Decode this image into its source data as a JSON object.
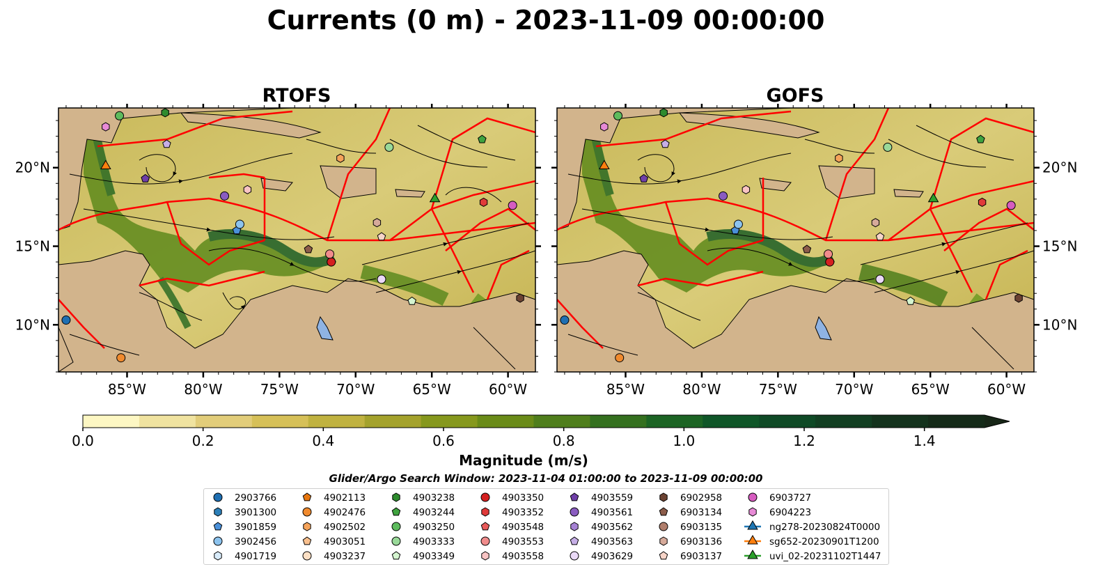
{
  "figure": {
    "title": "Currents (0 m) - 2023-11-09 00:00:00",
    "panels": [
      {
        "title": "RTOFS"
      },
      {
        "title": "GOFS"
      }
    ],
    "colorbar": {
      "label": "Magnitude (m/s)",
      "ticks": [
        "0.0",
        "0.2",
        "0.4",
        "0.6",
        "0.8",
        "1.0",
        "1.2",
        "1.4"
      ],
      "colors": [
        "#fdf7c3",
        "#f0e3a0",
        "#e2cd7a",
        "#d6c058",
        "#c0b240",
        "#a4a22c",
        "#86981d",
        "#6a8b18",
        "#4f7e1c",
        "#34701f",
        "#1c6424",
        "#0f5628",
        "#0f4a26",
        "#123f22",
        "#14331d",
        "#152b19",
        "#172617"
      ]
    },
    "search_window": "Glider/Argo Search Window: 2023-11-04 01:00:00 to 2023-11-09 00:00:00"
  },
  "chart_data": [
    {
      "type": "map",
      "title": "RTOFS",
      "xlim": [
        -89.5,
        -58.2
      ],
      "ylim": [
        7.0,
        23.8
      ],
      "xticks": [
        {
          "value": -85,
          "label": "85°W"
        },
        {
          "value": -80,
          "label": "80°W"
        },
        {
          "value": -75,
          "label": "75°W"
        },
        {
          "value": -70,
          "label": "70°W"
        },
        {
          "value": -65,
          "label": "65°W"
        },
        {
          "value": -60,
          "label": "60°W"
        }
      ],
      "yticks": [
        {
          "value": 20,
          "label": "20°N"
        },
        {
          "value": 15,
          "label": "15°N"
        },
        {
          "value": 10,
          "label": "10°N"
        }
      ]
    },
    {
      "type": "map",
      "title": "GOFS",
      "xlim": [
        -89.5,
        -58.2
      ],
      "ylim": [
        7.0,
        23.8
      ],
      "xticks": [
        {
          "value": -85,
          "label": "85°W"
        },
        {
          "value": -80,
          "label": "80°W"
        },
        {
          "value": -75,
          "label": "75°W"
        },
        {
          "value": -70,
          "label": "70°W"
        },
        {
          "value": -65,
          "label": "65°W"
        },
        {
          "value": -60,
          "label": "60°W"
        }
      ],
      "yticks": [
        {
          "value": 20,
          "label": "20°N"
        },
        {
          "value": 15,
          "label": "15°N"
        },
        {
          "value": 10,
          "label": "10°N"
        }
      ]
    }
  ],
  "platforms": [
    {
      "id": "2903766",
      "marker": "circle",
      "color": "#1f6fb2",
      "lon": -89.0,
      "lat": 10.3
    },
    {
      "id": "3901300",
      "marker": "hexagon",
      "color": "#2c7fb8"
    },
    {
      "id": "3901859",
      "marker": "pentagon",
      "color": "#4a90d9",
      "lon": -77.8,
      "lat": 16.0
    },
    {
      "id": "3902456",
      "marker": "circle",
      "color": "#8cc3ee",
      "lon": -77.6,
      "lat": 16.4
    },
    {
      "id": "4901719",
      "marker": "hexagon",
      "color": "#d8ebfa"
    },
    {
      "id": "4902113",
      "marker": "pentagon",
      "color": "#e8770f"
    },
    {
      "id": "4902476",
      "marker": "circle",
      "color": "#f08a2e",
      "lon": -85.4,
      "lat": 7.9
    },
    {
      "id": "4902502",
      "marker": "hexagon",
      "color": "#f5a35a",
      "lon": -71.0,
      "lat": 20.6
    },
    {
      "id": "4903051",
      "marker": "pentagon",
      "color": "#f9c08e"
    },
    {
      "id": "4903237",
      "marker": "circle",
      "color": "#fde0c5"
    },
    {
      "id": "4903238",
      "marker": "hexagon",
      "color": "#2e8b2e",
      "lon": -82.5,
      "lat": 23.5
    },
    {
      "id": "4903244",
      "marker": "pentagon",
      "color": "#3fa33f",
      "lon": -61.7,
      "lat": 21.8
    },
    {
      "id": "4903250",
      "marker": "circle",
      "color": "#5dbb5d",
      "lon": -85.5,
      "lat": 23.3
    },
    {
      "id": "4903333",
      "marker": "circle",
      "color": "#99d999",
      "lon": -67.8,
      "lat": 21.3
    },
    {
      "id": "4903349",
      "marker": "pentagon",
      "color": "#d5f5d0",
      "lon": -66.3,
      "lat": 11.5
    },
    {
      "id": "4903350",
      "marker": "circle",
      "color": "#d42020",
      "lon": -71.6,
      "lat": 14.0
    },
    {
      "id": "4903352",
      "marker": "hexagon",
      "color": "#e03a3a",
      "lon": -61.6,
      "lat": 17.8
    },
    {
      "id": "4903548",
      "marker": "pentagon",
      "color": "#e85a5a"
    },
    {
      "id": "4903553",
      "marker": "circle",
      "color": "#f08c8c",
      "lon": -71.7,
      "lat": 14.5
    },
    {
      "id": "4903558",
      "marker": "hexagon",
      "color": "#f9c4c4",
      "lon": -77.1,
      "lat": 18.6
    },
    {
      "id": "4903559",
      "marker": "pentagon",
      "color": "#6f3fa8",
      "lon": -83.8,
      "lat": 19.3
    },
    {
      "id": "4903561",
      "marker": "circle",
      "color": "#8a5cc0",
      "lon": -78.6,
      "lat": 18.2
    },
    {
      "id": "4903562",
      "marker": "hexagon",
      "color": "#a682d4"
    },
    {
      "id": "4903563",
      "marker": "pentagon",
      "color": "#c6aee6",
      "lon": -82.4,
      "lat": 21.5
    },
    {
      "id": "4903629",
      "marker": "circle",
      "color": "#ead9f7",
      "lon": -68.3,
      "lat": 12.9
    },
    {
      "id": "6902958",
      "marker": "hexagon",
      "color": "#6b4232",
      "lon": -59.2,
      "lat": 11.7
    },
    {
      "id": "6903134",
      "marker": "pentagon",
      "color": "#8c5c4a",
      "lon": -73.1,
      "lat": 14.8
    },
    {
      "id": "6903135",
      "marker": "circle",
      "color": "#b07e6c"
    },
    {
      "id": "6903136",
      "marker": "hexagon",
      "color": "#d6aa9a",
      "lon": -68.6,
      "lat": 16.5
    },
    {
      "id": "6903137",
      "marker": "pentagon",
      "color": "#f7d4c8",
      "lon": -68.3,
      "lat": 15.6
    },
    {
      "id": "6903727",
      "marker": "circle",
      "color": "#d65cc0",
      "lon": -59.7,
      "lat": 17.6
    },
    {
      "id": "6904223",
      "marker": "hexagon",
      "color": "#e78ad6",
      "lon": -86.4,
      "lat": 22.6
    },
    {
      "id": "ng278-20230824T0000",
      "marker": "triangle",
      "color": "#1f77b4",
      "track": true
    },
    {
      "id": "sg652-20230901T1200",
      "marker": "triangle",
      "color": "#ff7f0e",
      "track": true,
      "lon": -86.4,
      "lat": 20.1
    },
    {
      "id": "uvi_02-20231102T1447",
      "marker": "triangle",
      "color": "#2ca02c",
      "track": true,
      "lon": -64.8,
      "lat": 18.0
    }
  ]
}
